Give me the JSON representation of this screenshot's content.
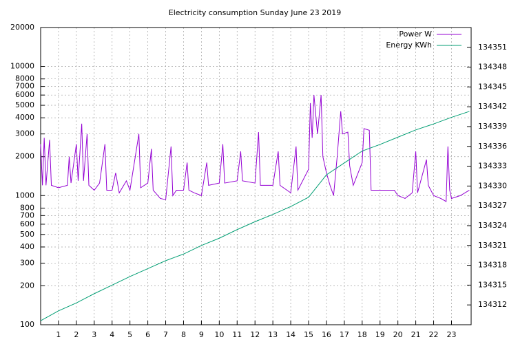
{
  "chart_data": {
    "type": "line",
    "title": "Electricity consumption Sunday June 23 2019",
    "log_y": true,
    "grid": true,
    "legend": "top-right",
    "xlim": [
      0,
      24.1
    ],
    "xticks": [
      1,
      2,
      3,
      4,
      5,
      6,
      7,
      8,
      9,
      10,
      11,
      12,
      13,
      14,
      15,
      16,
      17,
      18,
      19,
      20,
      21,
      22,
      23
    ],
    "ylim": [
      100,
      20000
    ],
    "yticks": [
      100,
      200,
      300,
      400,
      500,
      600,
      700,
      800,
      1000,
      2000,
      3000,
      4000,
      5000,
      6000,
      7000,
      8000,
      10000,
      20000
    ],
    "y2lim": [
      134309,
      134354
    ],
    "y2ticks": [
      134312,
      134315,
      134318,
      134321,
      134324,
      134327,
      134330,
      134333,
      134336,
      134339,
      134342,
      134345,
      134348,
      134351
    ],
    "series": [
      {
        "name": "Power W",
        "color": "#9400d3",
        "x": [
          0,
          0.1,
          0.2,
          0.3,
          0.5,
          0.6,
          1,
          1.5,
          1.6,
          1.7,
          2,
          2.1,
          2.3,
          2.4,
          2.6,
          2.7,
          3,
          3.3,
          3.6,
          3.7,
          4,
          4.2,
          4.4,
          4.8,
          5,
          5.5,
          5.6,
          6,
          6.2,
          6.3,
          6.7,
          7,
          7.3,
          7.4,
          7.6,
          8,
          8.2,
          8.3,
          8.6,
          9,
          9.3,
          9.4,
          10,
          10.2,
          10.3,
          11,
          11.2,
          11.3,
          12,
          12.2,
          12.3,
          13,
          13.3,
          13.4,
          14,
          14.3,
          14.4,
          15,
          15.1,
          15.2,
          15.3,
          15.5,
          15.7,
          15.8,
          16,
          16.2,
          16.4,
          16.6,
          16.8,
          16.9,
          17.2,
          17.3,
          17.5,
          18,
          18.1,
          18.4,
          18.5,
          19,
          19.8,
          20,
          20.4,
          20.8,
          21,
          21.1,
          21.6,
          21.7,
          22,
          22.4,
          22.7,
          22.8,
          22.9,
          23,
          23.5,
          24
        ],
        "values": [
          2500,
          1200,
          2800,
          1200,
          2700,
          1200,
          1150,
          1200,
          2000,
          1250,
          2500,
          1300,
          3600,
          1300,
          3000,
          1200,
          1100,
          1250,
          2500,
          1100,
          1100,
          1500,
          1050,
          1300,
          1100,
          3000,
          1150,
          1250,
          2300,
          1100,
          950,
          930,
          2400,
          1000,
          1100,
          1100,
          1800,
          1100,
          1050,
          1000,
          1800,
          1200,
          1250,
          2500,
          1250,
          1300,
          2200,
          1300,
          1250,
          3100,
          1200,
          1200,
          2200,
          1200,
          1050,
          2400,
          1100,
          1600,
          5200,
          2800,
          6000,
          3000,
          6000,
          2000,
          1500,
          1200,
          1000,
          2000,
          4500,
          3000,
          3100,
          1700,
          1200,
          1800,
          3300,
          3200,
          1100,
          1100,
          1100,
          1000,
          950,
          1050,
          2200,
          1050,
          1900,
          1200,
          1000,
          950,
          900,
          2400,
          1100,
          950,
          1000,
          1100
        ]
      },
      {
        "name": "Energy KWh",
        "color": "#009e73",
        "axis": "y2",
        "x": [
          0,
          1,
          2,
          3,
          4,
          5,
          6,
          7,
          8,
          9,
          10,
          11,
          12,
          13,
          14,
          15,
          15.5,
          16,
          17,
          18,
          19,
          20,
          21,
          22,
          23,
          24
        ],
        "values": [
          134309.6,
          134311.1,
          134312.3,
          134313.7,
          134315.0,
          134316.3,
          134317.5,
          134318.7,
          134319.7,
          134321.0,
          134322.1,
          134323.4,
          134324.6,
          134325.7,
          134326.9,
          134328.3,
          134330.0,
          134331.7,
          134333.5,
          134335.3,
          134336.3,
          134337.4,
          134338.5,
          134339.4,
          134340.4,
          134341.3
        ]
      }
    ]
  }
}
